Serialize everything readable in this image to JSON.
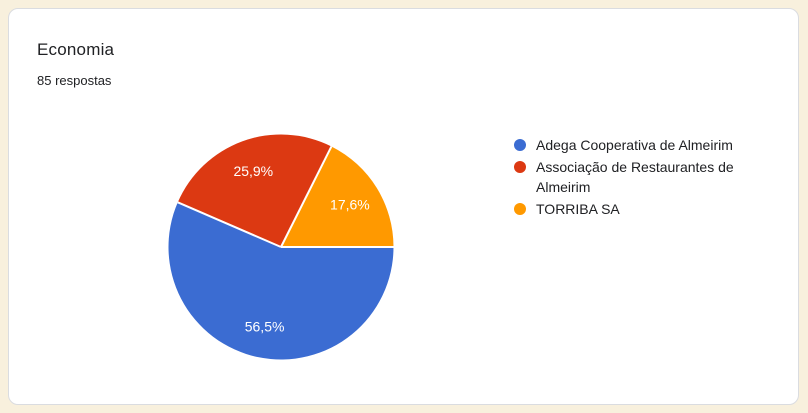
{
  "header": {
    "title": "Economia",
    "responses": "85 respostas"
  },
  "chart_data": {
    "type": "pie",
    "title": "Economia",
    "subtitle": "85 respostas",
    "categories": [
      "Adega Cooperativa de Almeirim",
      "Associação de Restaurantes de Almeirim",
      "TORRIBA SA"
    ],
    "values": [
      56.5,
      25.9,
      17.6
    ],
    "value_labels": [
      "56,5%",
      "25,9%",
      "17,6%"
    ],
    "unit": "percent",
    "colors": [
      "#3b6cd2",
      "#dc3912",
      "#ff9900"
    ],
    "label_color": "#ffffff",
    "separator_color": "#ffffff",
    "start_angle": "east",
    "direction": "clockwise",
    "legend_position": "right"
  },
  "theme": {
    "page_bg": "#f8f0dd",
    "card_bg": "#ffffff",
    "card_border": "#dadce0",
    "text_color": "#202124"
  }
}
